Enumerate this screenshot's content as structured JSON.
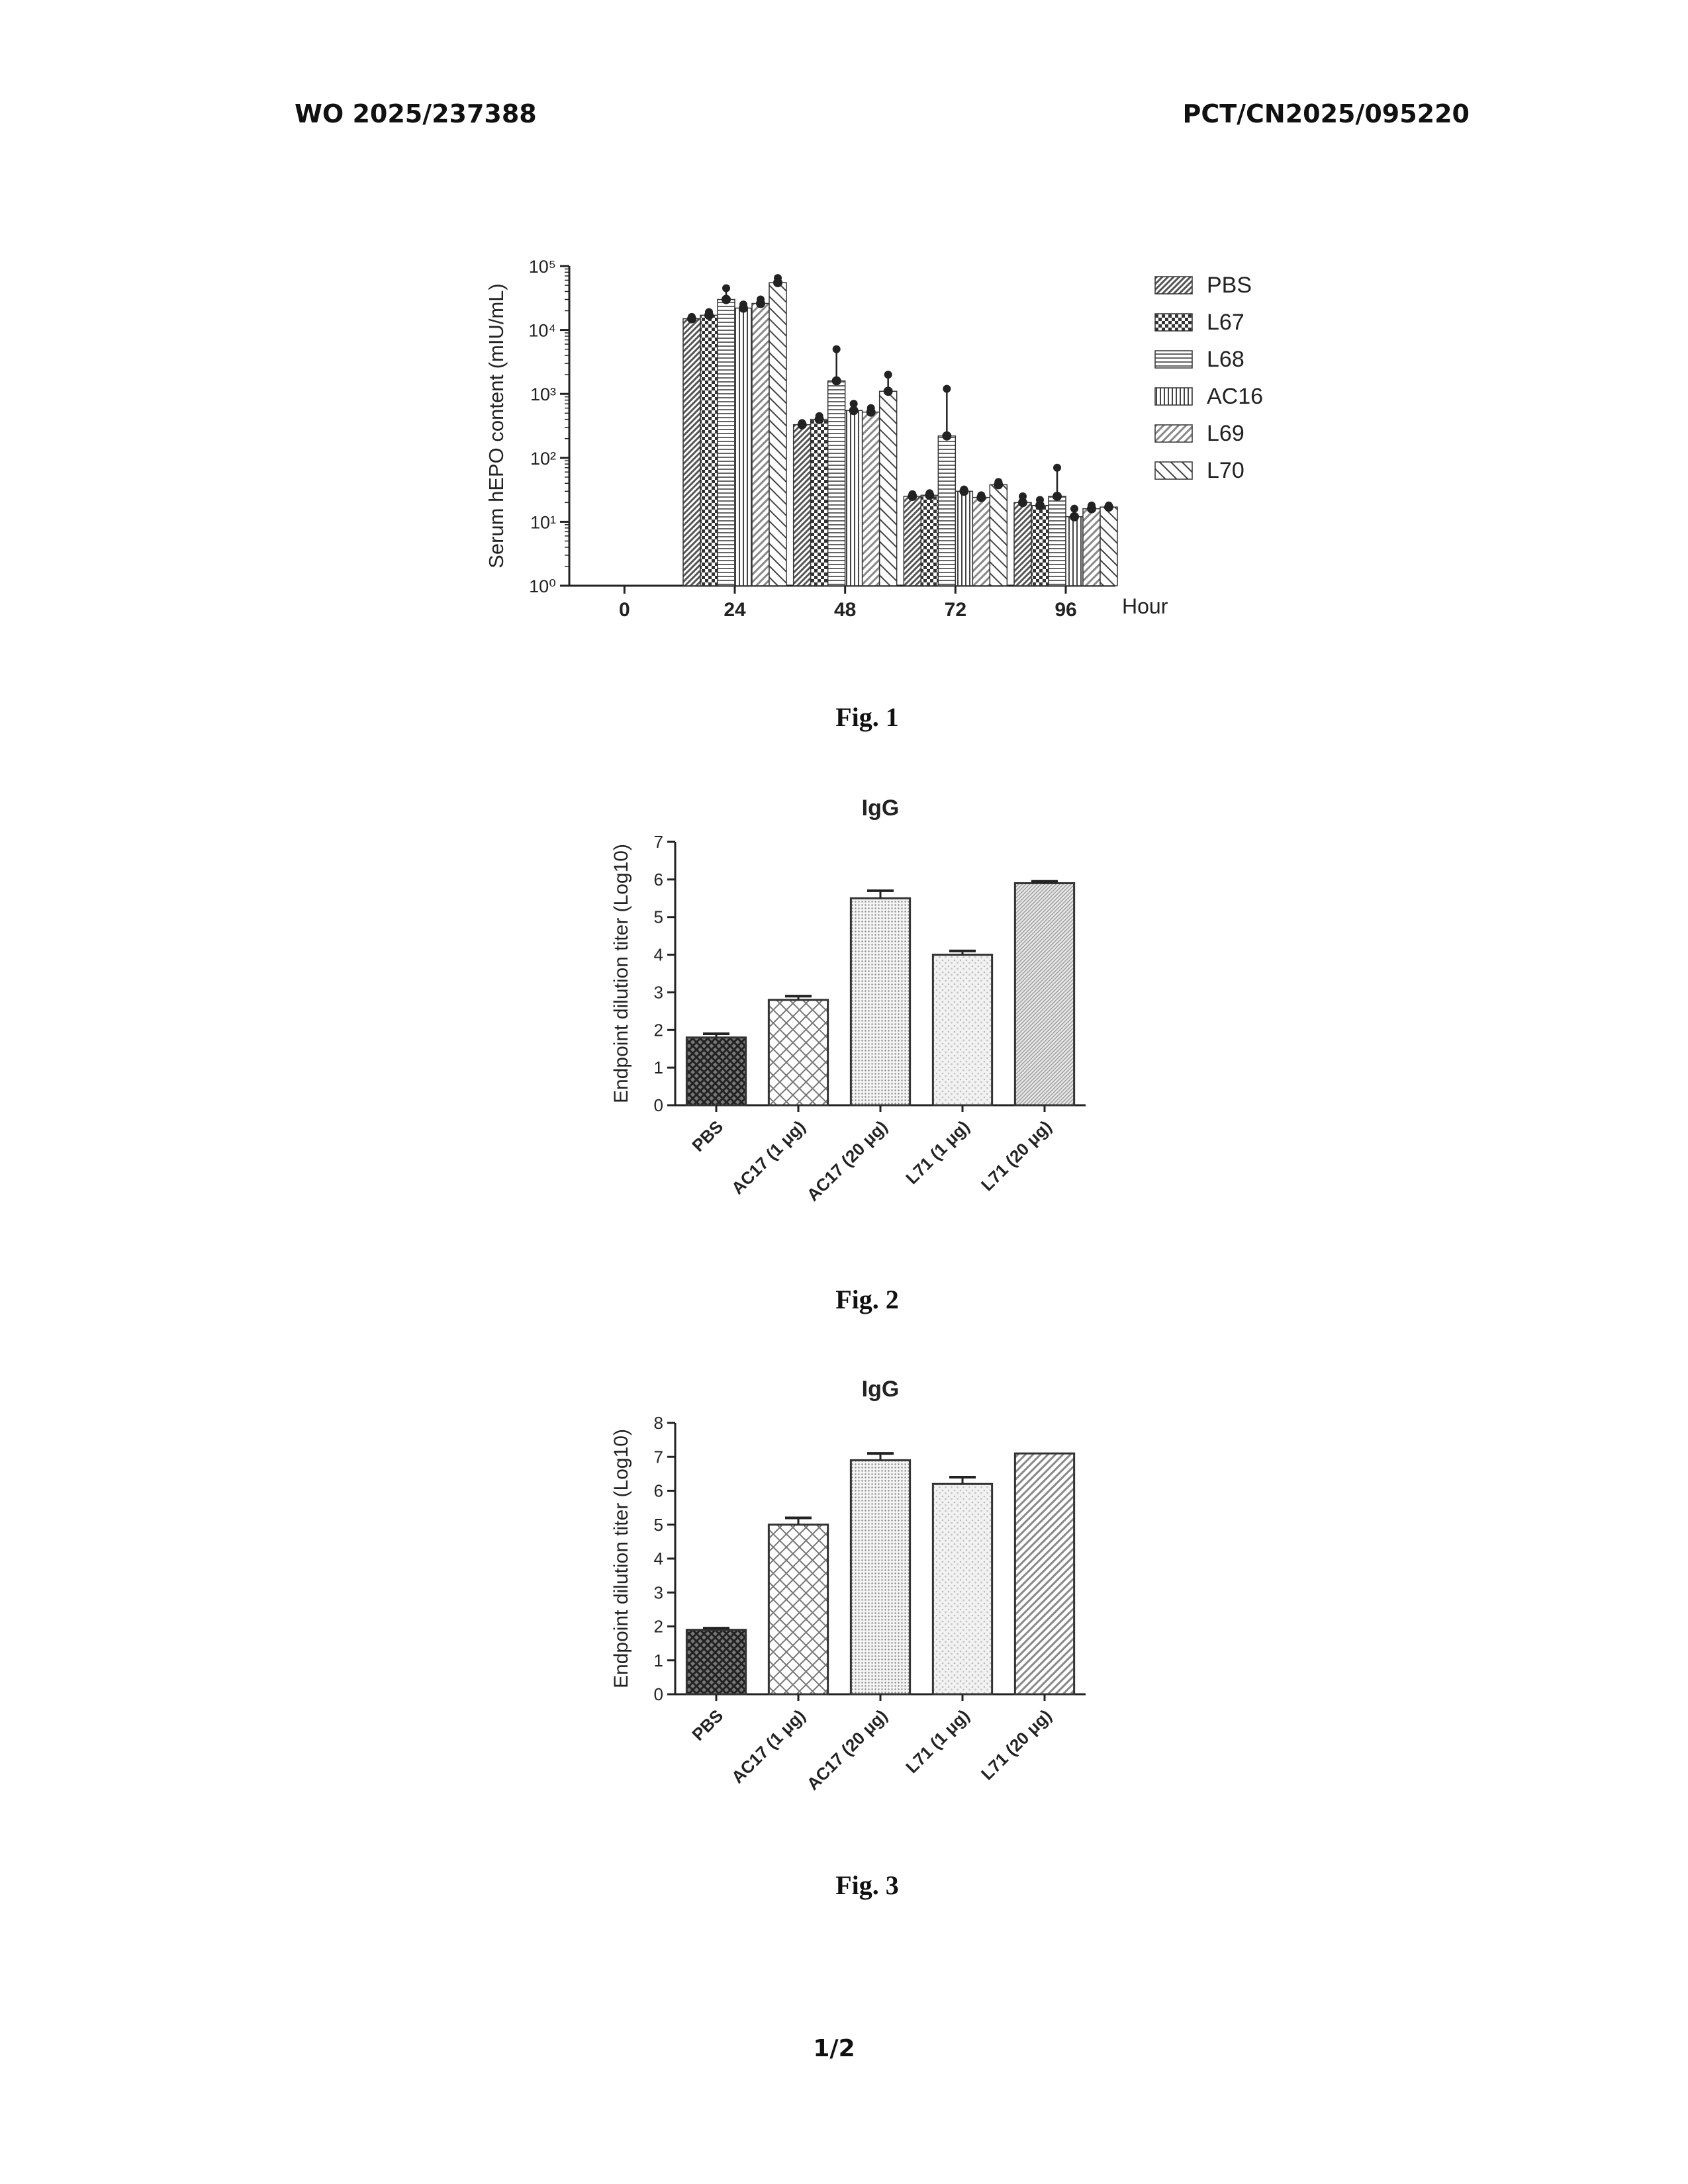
{
  "header": {
    "left": "WO 2025/237388",
    "right": "PCT/CN2025/095220"
  },
  "captions": {
    "fig1": "Fig. 1",
    "fig2": "Fig. 2",
    "fig3": "Fig. 3"
  },
  "page_number": "1/2",
  "colors": {
    "ink": "#222222",
    "bar_outline": "#333333",
    "pattern_gray": "#777777"
  },
  "chart_data": [
    {
      "type": "bar",
      "figure": "Fig. 1",
      "ylabel": "Serum hEPO content (mIU/mL)",
      "xlabel": "Hour",
      "yscale": "log",
      "ylim": [
        1,
        100000
      ],
      "yticks": [
        "10⁰",
        "10¹",
        "10²",
        "10³",
        "10⁴",
        "10⁵"
      ],
      "categories": [
        "0",
        "24",
        "48",
        "72",
        "96"
      ],
      "legend_position": "right",
      "series": [
        {
          "name": "PBS",
          "pattern": "diag-dense",
          "values": [
            null,
            15000,
            330,
            25,
            20
          ],
          "err": [
            null,
            16000,
            350,
            27,
            25
          ]
        },
        {
          "name": "L67",
          "pattern": "checker",
          "values": [
            null,
            17000,
            400,
            26,
            18
          ],
          "err": [
            null,
            19000,
            450,
            28,
            22
          ]
        },
        {
          "name": "L68",
          "pattern": "hlines",
          "values": [
            null,
            30000,
            1600,
            220,
            25
          ],
          "err": [
            null,
            45000,
            5000,
            1200,
            70
          ]
        },
        {
          "name": "AC16",
          "pattern": "vlines",
          "values": [
            null,
            22000,
            550,
            30,
            12
          ],
          "err": [
            null,
            25000,
            700,
            32,
            16
          ]
        },
        {
          "name": "L69",
          "pattern": "diag",
          "values": [
            null,
            26000,
            520,
            24,
            16
          ],
          "err": [
            null,
            30000,
            600,
            26,
            18
          ]
        },
        {
          "name": "L70",
          "pattern": "anti-diag",
          "values": [
            null,
            55000,
            1100,
            38,
            17
          ],
          "err": [
            null,
            65000,
            2000,
            42,
            18
          ]
        }
      ]
    },
    {
      "type": "bar",
      "figure": "Fig. 2",
      "title": "IgG",
      "ylabel": "Endpoint dilution titer (Log10)",
      "ylim": [
        0,
        7
      ],
      "yticks": [
        "0",
        "1",
        "2",
        "3",
        "4",
        "5",
        "6",
        "7"
      ],
      "categories": [
        "PBS",
        "AC17 (1 μg)",
        "AC17 (20 μg)",
        "L71 (1 μg)",
        "L71 (20 μg)"
      ],
      "values": [
        1.8,
        2.8,
        5.5,
        4.0,
        5.9
      ],
      "err": [
        0.1,
        0.1,
        0.2,
        0.1,
        0.05
      ],
      "patterns": [
        "crosshatch-dark",
        "crosshatch",
        "dots",
        "mottled",
        "fine"
      ]
    },
    {
      "type": "bar",
      "figure": "Fig. 3",
      "title": "IgG",
      "ylabel": "Endpoint dilution titer (Log10)",
      "ylim": [
        0,
        8
      ],
      "yticks": [
        "0",
        "1",
        "2",
        "3",
        "4",
        "5",
        "6",
        "7",
        "8"
      ],
      "categories": [
        "PBS",
        "AC17 (1 μg)",
        "AC17 (20 μg)",
        "L71 (1 μg)",
        "L71 (20 μg)"
      ],
      "values": [
        1.9,
        5.0,
        6.9,
        6.2,
        7.1
      ],
      "err": [
        0.05,
        0.2,
        0.2,
        0.2,
        0.0
      ],
      "patterns": [
        "crosshatch-dark",
        "crosshatch",
        "dots",
        "mottled",
        "diag"
      ]
    }
  ]
}
